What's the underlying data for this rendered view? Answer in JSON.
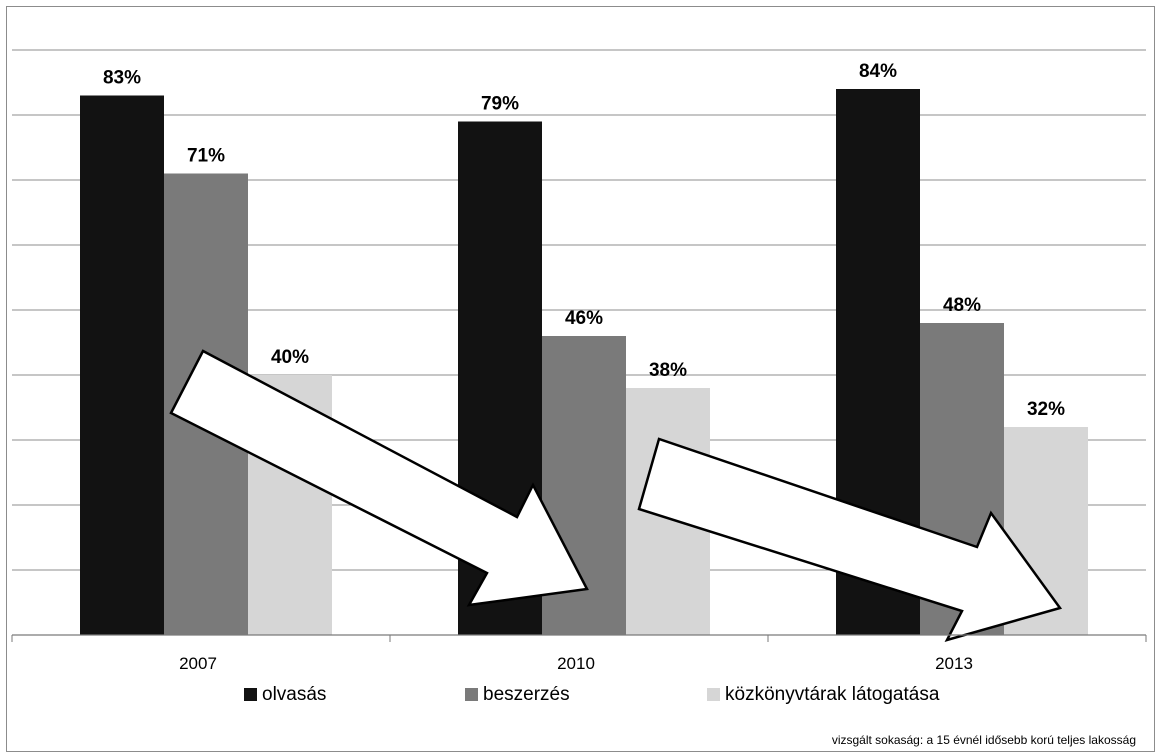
{
  "chart_data": {
    "type": "bar",
    "categories": [
      "2007",
      "2010",
      "2013"
    ],
    "series": [
      {
        "name": "olvasás",
        "values": [
          83,
          79,
          84
        ],
        "color": "#121212"
      },
      {
        "name": "beszerzés",
        "values": [
          71,
          46,
          48
        ],
        "color": "#7a7a7a"
      },
      {
        "name": "közkönyvtárak látogatása",
        "values": [
          40,
          38,
          32
        ],
        "color": "#d6d6d6"
      }
    ],
    "value_labels": [
      [
        "83%",
        "79%",
        "84%"
      ],
      [
        "71%",
        "46%",
        "48%"
      ],
      [
        "40%",
        "38%",
        "32%"
      ]
    ],
    "ylim": [
      0,
      90
    ],
    "gridlines": true,
    "legend_position": "bottom",
    "title": "",
    "xlabel": "",
    "ylabel": "",
    "footnote": "vizsgált sokaság: a 15 évnél idősebb korú teljes lakosság",
    "annotations": [
      {
        "type": "arrow",
        "from_category": "2007",
        "to_category": "2010",
        "fill": "#ffffff",
        "stroke": "#000000"
      },
      {
        "type": "arrow",
        "from_category": "2010",
        "to_category": "2013",
        "fill": "#ffffff",
        "stroke": "#000000"
      }
    ]
  }
}
